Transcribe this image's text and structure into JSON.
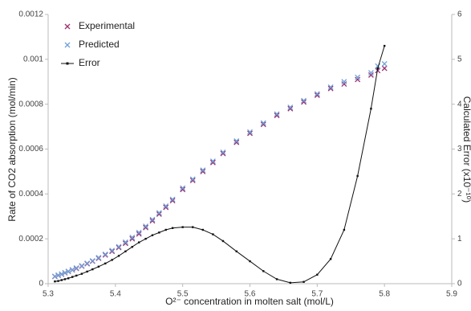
{
  "chart_data": {
    "type": "scatter",
    "xlabel": "O²⁻ concentration in molten salt (mol/L)",
    "ylabel": "Rate of CO2 absorption (mol/min)",
    "y2label": "Calculated Error (x10⁻¹⁰)",
    "x": [
      5.31,
      5.315,
      5.32,
      5.325,
      5.33,
      5.336,
      5.342,
      5.35,
      5.358,
      5.366,
      5.375,
      5.385,
      5.395,
      5.405,
      5.415,
      5.425,
      5.435,
      5.445,
      5.455,
      5.465,
      5.475,
      5.485,
      5.5,
      5.515,
      5.53,
      5.545,
      5.56,
      5.58,
      5.6,
      5.62,
      5.64,
      5.66,
      5.68,
      5.7,
      5.72,
      5.74,
      5.76,
      5.78,
      5.79,
      5.8
    ],
    "series": [
      {
        "name": "Experimental",
        "color": "#9b3070",
        "marker": "x",
        "values": [
          3.2e-05,
          3.7e-05,
          4.2e-05,
          4.8e-05,
          5.4e-05,
          6.1e-05,
          6.8e-05,
          7.8e-05,
          8.9e-05,
          0.0001,
          0.000113,
          0.000128,
          0.000144,
          0.000161,
          0.00018,
          0.0002,
          0.000222,
          0.00025,
          0.00028,
          0.00031,
          0.00034,
          0.00037,
          0.00042,
          0.00046,
          0.0005,
          0.00054,
          0.00058,
          0.00063,
          0.00067,
          0.00071,
          0.00075,
          0.00078,
          0.00081,
          0.00084,
          0.00087,
          0.00089,
          0.00091,
          0.00093,
          0.00095,
          0.00096
        ]
      },
      {
        "name": "Predicted",
        "color": "#6fa0d8",
        "marker": "x",
        "values": [
          3.3e-05,
          3.8e-05,
          4.3e-05,
          4.9e-05,
          5.5e-05,
          6.2e-05,
          7e-05,
          8e-05,
          9.1e-05,
          0.000102,
          0.000116,
          0.000131,
          0.000148,
          0.000165,
          0.000185,
          0.000206,
          0.000228,
          0.000256,
          0.000286,
          0.000316,
          0.000346,
          0.000376,
          0.000426,
          0.000466,
          0.000506,
          0.000546,
          0.000586,
          0.000636,
          0.000676,
          0.000716,
          0.000756,
          0.000786,
          0.000816,
          0.000846,
          0.000876,
          0.0009,
          0.00092,
          0.00094,
          0.00097,
          0.00098
        ]
      },
      {
        "name": "Error",
        "color": "#111111",
        "marker": "line",
        "axis": "y2",
        "values": [
          0.05,
          0.06,
          0.08,
          0.1,
          0.12,
          0.15,
          0.18,
          0.22,
          0.27,
          0.32,
          0.38,
          0.45,
          0.53,
          0.62,
          0.72,
          0.82,
          0.92,
          1.0,
          1.08,
          1.14,
          1.2,
          1.24,
          1.26,
          1.26,
          1.2,
          1.1,
          0.95,
          0.72,
          0.5,
          0.28,
          0.1,
          0.02,
          0.04,
          0.2,
          0.55,
          1.2,
          2.4,
          3.9,
          4.8,
          5.3
        ]
      }
    ],
    "xlim": [
      5.3,
      5.9
    ],
    "xticks": [
      5.3,
      5.4,
      5.5,
      5.6,
      5.7,
      5.8,
      5.9
    ],
    "ylim": [
      0,
      0.0012
    ],
    "yticks": [
      0,
      0.0002,
      0.0004,
      0.0006,
      0.0008,
      0.001,
      0.0012
    ],
    "y2lim": [
      0,
      6
    ],
    "y2ticks": [
      0,
      1,
      2,
      3,
      4,
      5,
      6
    ],
    "legend": "upper left"
  }
}
